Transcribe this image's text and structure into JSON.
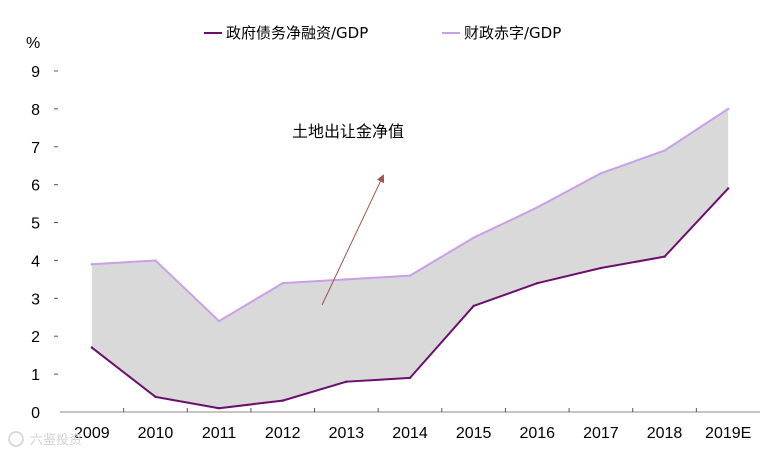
{
  "chart_data": {
    "type": "area",
    "title": "",
    "ylabel": "%",
    "xlabel": "",
    "ylim": [
      0,
      9
    ],
    "yticks": [
      0,
      1,
      2,
      3,
      4,
      5,
      6,
      7,
      8,
      9
    ],
    "categories": [
      "2009",
      "2010",
      "2011",
      "2012",
      "2013",
      "2014",
      "2015",
      "2016",
      "2017",
      "2018",
      "2019E"
    ],
    "series": [
      {
        "name": "政府债务净融资/GDP",
        "color": "#6a0f6d",
        "values": [
          1.7,
          0.4,
          0.1,
          0.3,
          0.8,
          0.9,
          2.8,
          3.4,
          3.8,
          4.1,
          5.9
        ]
      },
      {
        "name": "财政赤字/GDP",
        "color": "#c9a0e8",
        "values": [
          3.9,
          4.0,
          2.4,
          3.4,
          3.5,
          3.6,
          4.6,
          5.4,
          6.3,
          6.9,
          8.0
        ]
      }
    ],
    "fill_between_color": "#d9d9d9",
    "annotation": {
      "text": "土地出让金净值",
      "arrow_color": "#a0524b"
    },
    "legend_position": "top-center"
  },
  "watermark": {
    "text": "六鉴投资"
  }
}
